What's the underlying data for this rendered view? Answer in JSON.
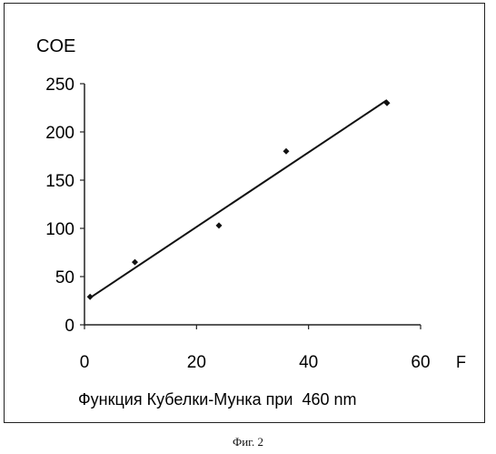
{
  "chart_data": {
    "type": "scatter",
    "title": "",
    "ylabel": "COE",
    "xlabel_end": "F",
    "xlabel": "Функция Кубелки-Мунка при  460 nm",
    "xlim": [
      0,
      60
    ],
    "ylim": [
      0,
      250
    ],
    "x_ticks": [
      0,
      20,
      40,
      60
    ],
    "y_ticks": [
      0,
      50,
      100,
      150,
      200,
      250
    ],
    "grid": false,
    "points": [
      {
        "x": 1,
        "y": 29
      },
      {
        "x": 9,
        "y": 65
      },
      {
        "x": 24,
        "y": 103
      },
      {
        "x": 36,
        "y": 180
      },
      {
        "x": 54,
        "y": 230
      }
    ],
    "trendline": {
      "type": "linear",
      "from": {
        "x": 1,
        "y": 28
      },
      "to": {
        "x": 54,
        "y": 233
      }
    },
    "colors": {
      "marker": "#111111",
      "line": "#111111",
      "axis": "#222222"
    }
  },
  "caption": "Фиг. 2"
}
